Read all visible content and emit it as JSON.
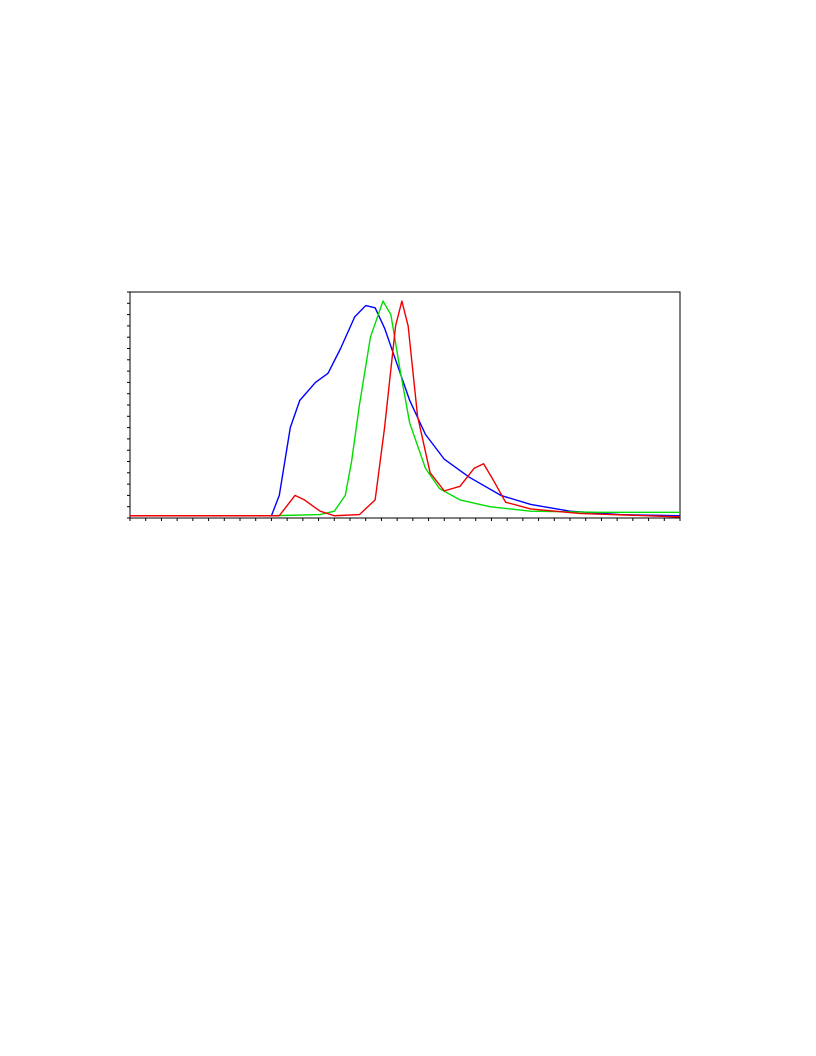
{
  "chart_data": {
    "type": "line",
    "xlim": [
      0,
      35
    ],
    "ylim": [
      0,
      100
    ],
    "xticks": [
      0,
      1,
      2,
      3,
      4,
      5,
      6,
      7,
      8,
      9,
      10,
      11,
      12,
      13,
      14,
      15,
      16,
      17,
      18,
      19,
      20,
      21,
      22,
      23,
      24,
      25,
      26,
      27,
      28,
      29,
      30,
      31,
      32,
      33,
      34,
      35
    ],
    "yticks": [
      0,
      5,
      10,
      15,
      20,
      25,
      30,
      35,
      40,
      45,
      50,
      55,
      60,
      65,
      70,
      75,
      80,
      85,
      90,
      95,
      100
    ],
    "grid": false,
    "series": [
      {
        "color": "#0000ff",
        "x": [
          0,
          5,
          9.0,
          9.5,
          10.2,
          10.8,
          11.8,
          12.6,
          13.4,
          14.3,
          15.0,
          15.6,
          16.2,
          16.9,
          17.8,
          18.8,
          20.0,
          21.6,
          23.6,
          25.5,
          28.0,
          31.2,
          35
        ],
        "values": [
          1,
          1,
          1,
          10,
          40,
          52,
          60,
          64,
          75,
          89,
          94,
          93,
          84,
          70,
          52,
          37,
          26,
          18,
          10,
          6,
          3,
          1.5,
          1
        ]
      },
      {
        "color": "#00dd00",
        "x": [
          0,
          5,
          9,
          12.1,
          13.0,
          13.7,
          14.1,
          14.6,
          15.3,
          16.1,
          16.6,
          17.2,
          17.8,
          18.8,
          19.7,
          21.0,
          22.9,
          25.5,
          29.9,
          35
        ],
        "values": [
          1,
          1,
          1,
          1.5,
          3,
          10,
          25,
          50,
          80,
          96,
          90,
          65,
          42,
          22,
          13,
          8,
          5,
          3,
          2.5,
          2.5
        ]
      },
      {
        "color": "#ee0000",
        "x": [
          0,
          5,
          9.5,
          10.5,
          11.1,
          12.1,
          13.0,
          14.6,
          15.6,
          16.2,
          16.9,
          17.3,
          17.7,
          18.3,
          19.1,
          20.0,
          21.0,
          21.9,
          22.5,
          23.1,
          23.9,
          25.5,
          28.6,
          35
        ],
        "values": [
          1,
          1,
          1,
          10,
          8,
          3,
          1,
          1.5,
          8,
          40,
          85,
          96,
          85,
          45,
          20,
          12,
          14,
          22,
          24,
          17,
          7,
          4,
          2,
          0.5
        ]
      }
    ]
  }
}
